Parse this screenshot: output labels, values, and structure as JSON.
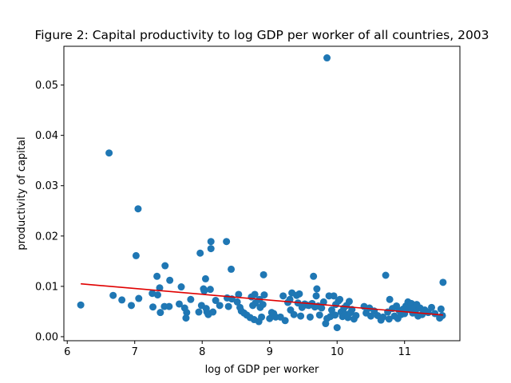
{
  "chart_data": {
    "type": "scatter",
    "title": "Figure 2: Capital productivity to log GDP per worker of all countries, 2003",
    "xlabel": "log of GDP per worker",
    "ylabel": "productivity of capital",
    "xlim": [
      5.95,
      11.82
    ],
    "ylim": [
      -0.0008,
      0.0577
    ],
    "xticks": [
      6,
      7,
      8,
      9,
      10,
      11
    ],
    "xtick_labels": [
      "6",
      "7",
      "8",
      "9",
      "10",
      "11"
    ],
    "yticks": [
      0.0,
      0.01,
      0.02,
      0.03,
      0.04,
      0.05
    ],
    "ytick_labels": [
      "0.00",
      "0.01",
      "0.02",
      "0.03",
      "0.04",
      "0.05"
    ],
    "grid": false,
    "colors": {
      "points": "#1f77b4",
      "fit_line": "#e00000"
    },
    "fit_line": {
      "x": [
        6.2,
        11.57
      ],
      "y": [
        0.0105,
        0.0043
      ]
    },
    "series": [
      {
        "points": [
          [
            6.2,
            0.0063
          ],
          [
            6.62,
            0.0365
          ],
          [
            6.68,
            0.0082
          ],
          [
            6.81,
            0.0073
          ],
          [
            6.95,
            0.0062
          ],
          [
            7.02,
            0.0161
          ],
          [
            7.05,
            0.0254
          ],
          [
            7.06,
            0.0076
          ],
          [
            7.26,
            0.0086
          ],
          [
            7.27,
            0.0059
          ],
          [
            7.33,
            0.012
          ],
          [
            7.34,
            0.0083
          ],
          [
            7.37,
            0.0097
          ],
          [
            7.38,
            0.0048
          ],
          [
            7.44,
            0.006
          ],
          [
            7.45,
            0.0141
          ],
          [
            7.51,
            0.006
          ],
          [
            7.52,
            0.0112
          ],
          [
            7.66,
            0.0065
          ],
          [
            7.69,
            0.0099
          ],
          [
            7.74,
            0.0057
          ],
          [
            7.76,
            0.0037
          ],
          [
            7.77,
            0.0048
          ],
          [
            7.83,
            0.0074
          ],
          [
            7.95,
            0.0049
          ],
          [
            7.97,
            0.0166
          ],
          [
            7.99,
            0.0062
          ],
          [
            8.02,
            0.0095
          ],
          [
            8.03,
            0.0091
          ],
          [
            8.05,
            0.0115
          ],
          [
            8.06,
            0.0056
          ],
          [
            8.07,
            0.0049
          ],
          [
            8.09,
            0.0044
          ],
          [
            8.12,
            0.0094
          ],
          [
            8.13,
            0.0189
          ],
          [
            8.13,
            0.0175
          ],
          [
            8.16,
            0.0049
          ],
          [
            8.2,
            0.0072
          ],
          [
            8.26,
            0.0062
          ],
          [
            8.36,
            0.0189
          ],
          [
            8.37,
            0.0077
          ],
          [
            8.39,
            0.006
          ],
          [
            8.43,
            0.0134
          ],
          [
            8.44,
            0.0075
          ],
          [
            8.52,
            0.0069
          ],
          [
            8.54,
            0.0084
          ],
          [
            8.56,
            0.0058
          ],
          [
            8.58,
            0.0051
          ],
          [
            8.62,
            0.0047
          ],
          [
            8.66,
            0.0043
          ],
          [
            8.71,
            0.0038
          ],
          [
            8.73,
            0.0079
          ],
          [
            8.75,
            0.0062
          ],
          [
            8.77,
            0.0034
          ],
          [
            8.78,
            0.0084
          ],
          [
            8.79,
            0.0067
          ],
          [
            8.84,
            0.003
          ],
          [
            8.85,
            0.0074
          ],
          [
            8.86,
            0.0058
          ],
          [
            8.88,
            0.0039
          ],
          [
            8.9,
            0.0064
          ],
          [
            8.91,
            0.0123
          ],
          [
            8.92,
            0.0083
          ],
          [
            9.0,
            0.0036
          ],
          [
            9.03,
            0.0048
          ],
          [
            9.06,
            0.0046
          ],
          [
            9.09,
            0.0039
          ],
          [
            9.16,
            0.0039
          ],
          [
            9.2,
            0.0081
          ],
          [
            9.23,
            0.0032
          ],
          [
            9.27,
            0.0068
          ],
          [
            9.3,
            0.0074
          ],
          [
            9.31,
            0.0053
          ],
          [
            9.33,
            0.0087
          ],
          [
            9.36,
            0.0044
          ],
          [
            9.4,
            0.0082
          ],
          [
            9.42,
            0.0067
          ],
          [
            9.44,
            0.0085
          ],
          [
            9.46,
            0.0041
          ],
          [
            9.48,
            0.0058
          ],
          [
            9.52,
            0.0065
          ],
          [
            9.55,
            0.0063
          ],
          [
            9.58,
            0.0062
          ],
          [
            9.6,
            0.0039
          ],
          [
            9.63,
            0.0066
          ],
          [
            9.65,
            0.012
          ],
          [
            9.67,
            0.0059
          ],
          [
            9.69,
            0.0081
          ],
          [
            9.7,
            0.0095
          ],
          [
            9.72,
            0.0061
          ],
          [
            9.74,
            0.0043
          ],
          [
            9.77,
            0.0057
          ],
          [
            9.8,
            0.0069
          ],
          [
            9.83,
            0.0026
          ],
          [
            9.85,
            0.0554
          ],
          [
            9.85,
            0.0036
          ],
          [
            9.88,
            0.0081
          ],
          [
            9.9,
            0.004
          ],
          [
            9.92,
            0.0053
          ],
          [
            9.95,
            0.0081
          ],
          [
            9.97,
            0.0043
          ],
          [
            9.98,
            0.0064
          ],
          [
            10.0,
            0.0018
          ],
          [
            10.02,
            0.0071
          ],
          [
            10.04,
            0.0074
          ],
          [
            10.06,
            0.0049
          ],
          [
            10.08,
            0.004
          ],
          [
            10.1,
            0.0057
          ],
          [
            10.12,
            0.0045
          ],
          [
            10.14,
            0.0062
          ],
          [
            10.16,
            0.0038
          ],
          [
            10.18,
            0.007
          ],
          [
            10.2,
            0.0048
          ],
          [
            10.22,
            0.0054
          ],
          [
            10.25,
            0.0035
          ],
          [
            10.28,
            0.0042
          ],
          [
            10.4,
            0.006
          ],
          [
            10.43,
            0.0047
          ],
          [
            10.48,
            0.0057
          ],
          [
            10.5,
            0.0041
          ],
          [
            10.55,
            0.0051
          ],
          [
            10.6,
            0.0042
          ],
          [
            10.65,
            0.0033
          ],
          [
            10.68,
            0.0039
          ],
          [
            10.72,
            0.0122
          ],
          [
            10.75,
            0.0049
          ],
          [
            10.77,
            0.0035
          ],
          [
            10.78,
            0.0074
          ],
          [
            10.82,
            0.0056
          ],
          [
            10.85,
            0.0041
          ],
          [
            10.88,
            0.0061
          ],
          [
            10.9,
            0.0036
          ],
          [
            10.92,
            0.0052
          ],
          [
            10.95,
            0.0044
          ],
          [
            10.98,
            0.0055
          ],
          [
            11.0,
            0.0046
          ],
          [
            11.02,
            0.0061
          ],
          [
            11.05,
            0.0069
          ],
          [
            11.07,
            0.0055
          ],
          [
            11.1,
            0.0066
          ],
          [
            11.12,
            0.0047
          ],
          [
            11.14,
            0.0058
          ],
          [
            11.16,
            0.0049
          ],
          [
            11.18,
            0.0064
          ],
          [
            11.2,
            0.0041
          ],
          [
            11.23,
            0.0057
          ],
          [
            11.26,
            0.0044
          ],
          [
            11.3,
            0.0053
          ],
          [
            11.35,
            0.0048
          ],
          [
            11.4,
            0.0058
          ],
          [
            11.45,
            0.0046
          ],
          [
            11.52,
            0.0037
          ],
          [
            11.54,
            0.0055
          ],
          [
            11.56,
            0.0042
          ],
          [
            11.57,
            0.0108
          ]
        ]
      }
    ]
  }
}
